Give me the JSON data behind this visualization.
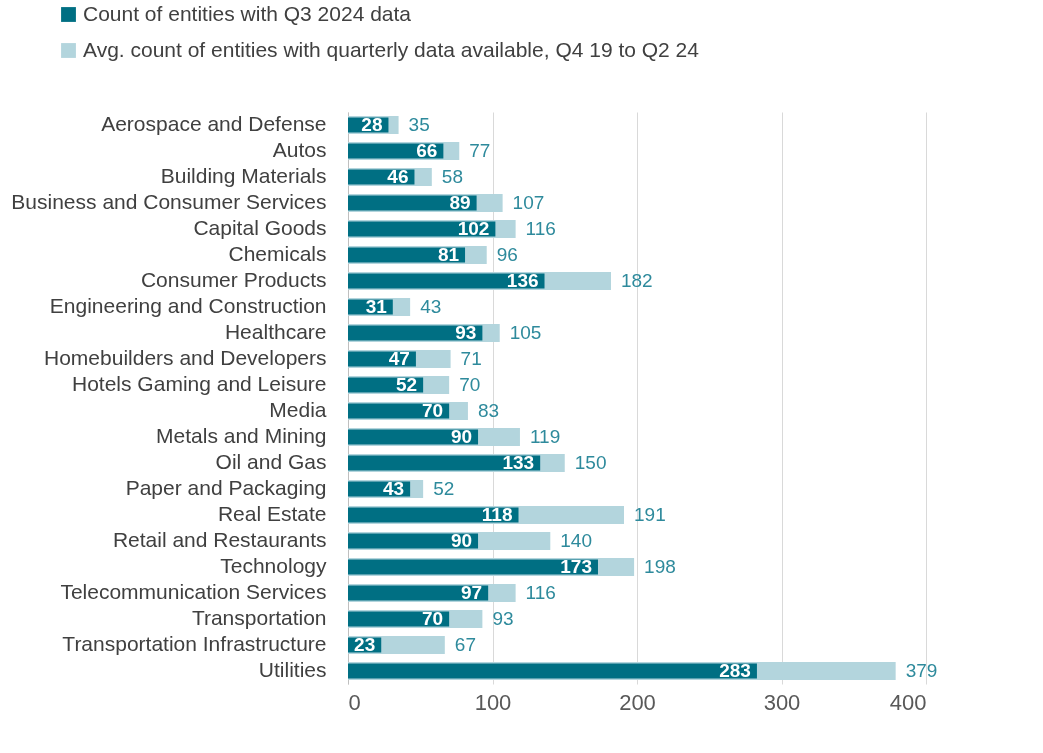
{
  "chart_data": {
    "type": "bar",
    "orientation": "horizontal",
    "categories": [
      "Aerospace and Defense",
      "Autos",
      "Building Materials",
      "Business and Consumer Services",
      "Capital Goods",
      "Chemicals",
      "Consumer Products",
      "Engineering and Construction",
      "Healthcare",
      "Homebuilders and Developers",
      "Hotels Gaming and Leisure",
      "Media",
      "Metals and Mining",
      "Oil and Gas",
      "Paper and Packaging",
      "Real Estate",
      "Retail and Restaurants",
      "Technology",
      "Telecommunication Services",
      "Transportation",
      "Transportation Infrastructure",
      "Utilities"
    ],
    "series": [
      {
        "name": "Count of entities with Q3 2024 data",
        "color": "#006f83",
        "values": [
          28,
          66,
          46,
          89,
          102,
          81,
          136,
          31,
          93,
          47,
          52,
          70,
          90,
          133,
          43,
          118,
          90,
          173,
          97,
          70,
          23,
          283
        ]
      },
      {
        "name": "Avg. count of entities with quarterly data available, Q4 19 to Q2 24",
        "color": "#b3d5dd",
        "values": [
          35,
          77,
          58,
          107,
          116,
          96,
          182,
          43,
          105,
          71,
          70,
          83,
          119,
          150,
          52,
          191,
          140,
          198,
          116,
          93,
          67,
          379
        ]
      }
    ],
    "xlim": [
      0,
      400
    ],
    "xticks": [
      0,
      100,
      200,
      300,
      400
    ],
    "grid": "x",
    "legend": "top",
    "data_labels": true
  }
}
